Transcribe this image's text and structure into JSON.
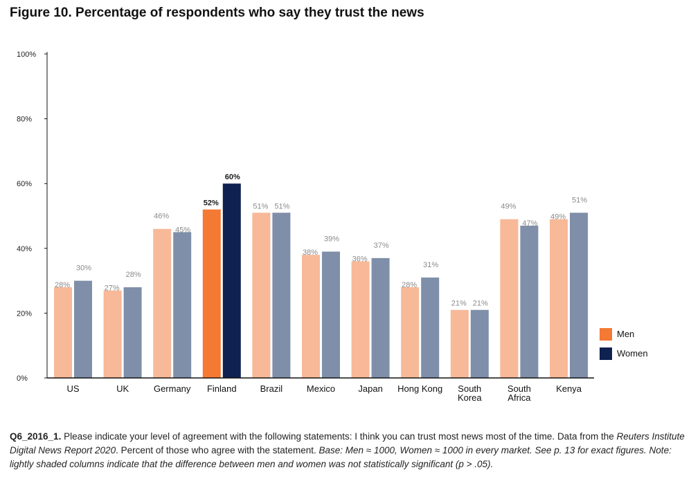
{
  "title": "Figure 10. Percentage of respondents who say they trust the news",
  "chart_data": {
    "type": "bar",
    "title": "Figure 10. Percentage of respondents who say they trust the news",
    "categories": [
      "US",
      "UK",
      "Germany",
      "Finland",
      "Brazil",
      "Mexico",
      "Japan",
      "Hong Kong",
      "South Korea",
      "South Africa",
      "Kenya"
    ],
    "category_lines": [
      [
        "US"
      ],
      [
        "UK"
      ],
      [
        "Germany"
      ],
      [
        "Finland"
      ],
      [
        "Brazil"
      ],
      [
        "Mexico"
      ],
      [
        "Japan"
      ],
      [
        "Hong Kong"
      ],
      [
        "South",
        "Korea"
      ],
      [
        "South",
        "Africa"
      ],
      [
        "Kenya"
      ]
    ],
    "series": [
      {
        "name": "Men",
        "values": [
          28,
          27,
          46,
          52,
          51,
          38,
          36,
          28,
          21,
          49,
          49
        ]
      },
      {
        "name": "Women",
        "values": [
          30,
          28,
          45,
          60,
          51,
          39,
          37,
          31,
          21,
          47,
          51
        ]
      }
    ],
    "significant": [
      false,
      false,
      false,
      true,
      false,
      false,
      false,
      false,
      false,
      false,
      false
    ],
    "ylim": [
      0,
      100
    ],
    "yticks": [
      0,
      20,
      40,
      60,
      80,
      100
    ],
    "xlabel": "",
    "ylabel": "",
    "legend_position": "right",
    "colors": {
      "men": "#f47932",
      "women": "#0f2150",
      "men_light": "#f7b998",
      "women_light": "#7f8fa9",
      "label_light": "#8a8a8a",
      "label_dark": "#1a1a1a"
    }
  },
  "footnote": {
    "question_id": "Q6_2016_1.",
    "question": " Please indicate your level of agreement with the following statements: I think you can trust most news most of the time.",
    "data_prefix": "Data from the ",
    "report_name": "Reuters Institute Digital News Report 2020",
    "data_suffix": ". Percent of those who agree with the statement. ",
    "base_note": "Base: Men ≈ 1000, Women ≈ 1000 in every market. See p. 13 for exact figures. Note: lightly shaded columns indicate that the difference between men and women was not statistically significant (p > .05)."
  }
}
